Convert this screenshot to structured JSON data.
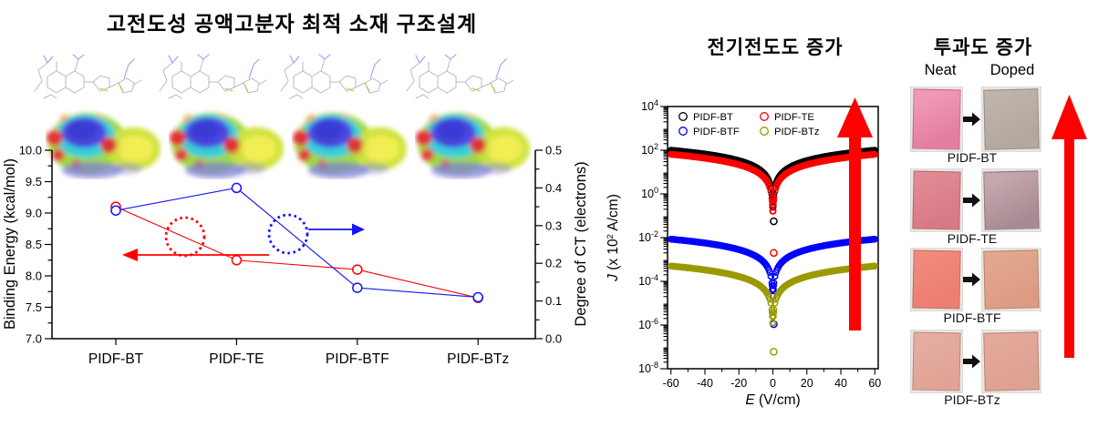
{
  "titles": {
    "left": "고전도성 공액고분자 최적 소재 구조설계",
    "middle": "전기전도도 증가",
    "right": "투과도 증가"
  },
  "chart_data": [
    {
      "type": "line",
      "title": "Binding energy and degree of charge transfer per polymer",
      "categories": [
        "PIDF-BT",
        "PIDF-TE",
        "PIDF-BTF",
        "PIDF-BTz"
      ],
      "left_axis": {
        "label": "Binding Energy (kcal/mol)",
        "range": [
          7.0,
          10.0
        ],
        "major_tick": 0.5,
        "minor_tick": 0.25,
        "tick_labels": [
          "7.0",
          "7.5",
          "8.0",
          "8.5",
          "9.0",
          "9.5",
          "10.0"
        ]
      },
      "right_axis": {
        "label": "Degree of CT (electrons)",
        "range": [
          0.0,
          0.5
        ],
        "major_tick": 0.1,
        "minor_tick": 0.05,
        "tick_labels": [
          "0.0",
          "0.1",
          "0.2",
          "0.3",
          "0.4",
          "0.5"
        ]
      },
      "series": [
        {
          "name": "Binding Energy",
          "axis": "left",
          "color": "#ff0000",
          "marker": "open-circle",
          "values": [
            9.1,
            8.25,
            8.1,
            7.65
          ]
        },
        {
          "name": "Degree of CT",
          "axis": "right",
          "color": "#1414ff",
          "marker": "open-circle",
          "values": [
            0.34,
            0.4,
            0.135,
            0.11
          ]
        }
      ],
      "annotations": [
        {
          "type": "dotted-circle-with-arrow",
          "color": "#ff0000",
          "direction": "left"
        },
        {
          "type": "dotted-circle-with-arrow",
          "color": "#1414ff",
          "direction": "right"
        }
      ],
      "decorations": "4 molecular wireframes and 4 electrostatic-potential surface maps above plot"
    },
    {
      "type": "scatter",
      "title": "Current density vs electric field (log scale)",
      "xlabel_italic": "E",
      "xlabel_rest": " (V/cm)",
      "ylabel_italic": "J",
      "ylabel_rest": " (x 10",
      "ylabel_sup": "2",
      "ylabel_end": " A/cm)",
      "x_range": [
        -60,
        60
      ],
      "x_major_ticks": [
        -60,
        -40,
        -20,
        0,
        20,
        40,
        60
      ],
      "y_exponent_ticks": [
        4,
        2,
        0,
        -2,
        -4,
        -6,
        -8
      ],
      "model": "ohmic: J = J_at_60 * |E| / 60",
      "series": [
        {
          "name": "PIDF-BT",
          "color": "#000000",
          "J_at_60": 100,
          "J_zero_field": 0.056
        },
        {
          "name": "PIDF-TE",
          "color": "#ff0000",
          "J_at_60": 65,
          "J_zero_field": 0.002
        },
        {
          "name": "PIDF-BTF",
          "color": "#0000ff",
          "J_at_60": 0.0085,
          "J_zero_field": 1.1e-06
        },
        {
          "name": "PIDF-BTz",
          "color": "#9a9a00",
          "J_at_60": 0.0005,
          "J_zero_field": 6e-08
        }
      ],
      "legend": {
        "position": "top-left",
        "entries": [
          "PIDF-BT",
          "PIDF-TE",
          "PIDF-BTF",
          "PIDF-BTz"
        ]
      },
      "trend_arrow": {
        "color": "#fe0000",
        "direction": "up"
      }
    }
  ],
  "right_panel": {
    "col_headers": [
      "Neat",
      "Doped"
    ],
    "rows": [
      {
        "label": "PIDF-BT",
        "neat": [
          "#ef9ab5",
          "#e57d9f"
        ],
        "doped": [
          "#beb4ab",
          "#b2a8a0"
        ]
      },
      {
        "label": "PIDF-TE",
        "neat": [
          "#e18a93",
          "#d87a86"
        ],
        "doped": [
          "#c4a8ae",
          "#a98a92"
        ]
      },
      {
        "label": "PIDF-BTF",
        "neat": [
          "#f08a7c",
          "#ec7e71"
        ],
        "doped": [
          "#e2a78e",
          "#dc9c84"
        ]
      },
      {
        "label": "PIDF-BTz",
        "neat": [
          "#e5aca0",
          "#e0a496"
        ],
        "doped": [
          "#e3a99a",
          "#dea293"
        ]
      }
    ],
    "trend_arrow": {
      "color": "#fe0000",
      "direction": "up"
    }
  }
}
